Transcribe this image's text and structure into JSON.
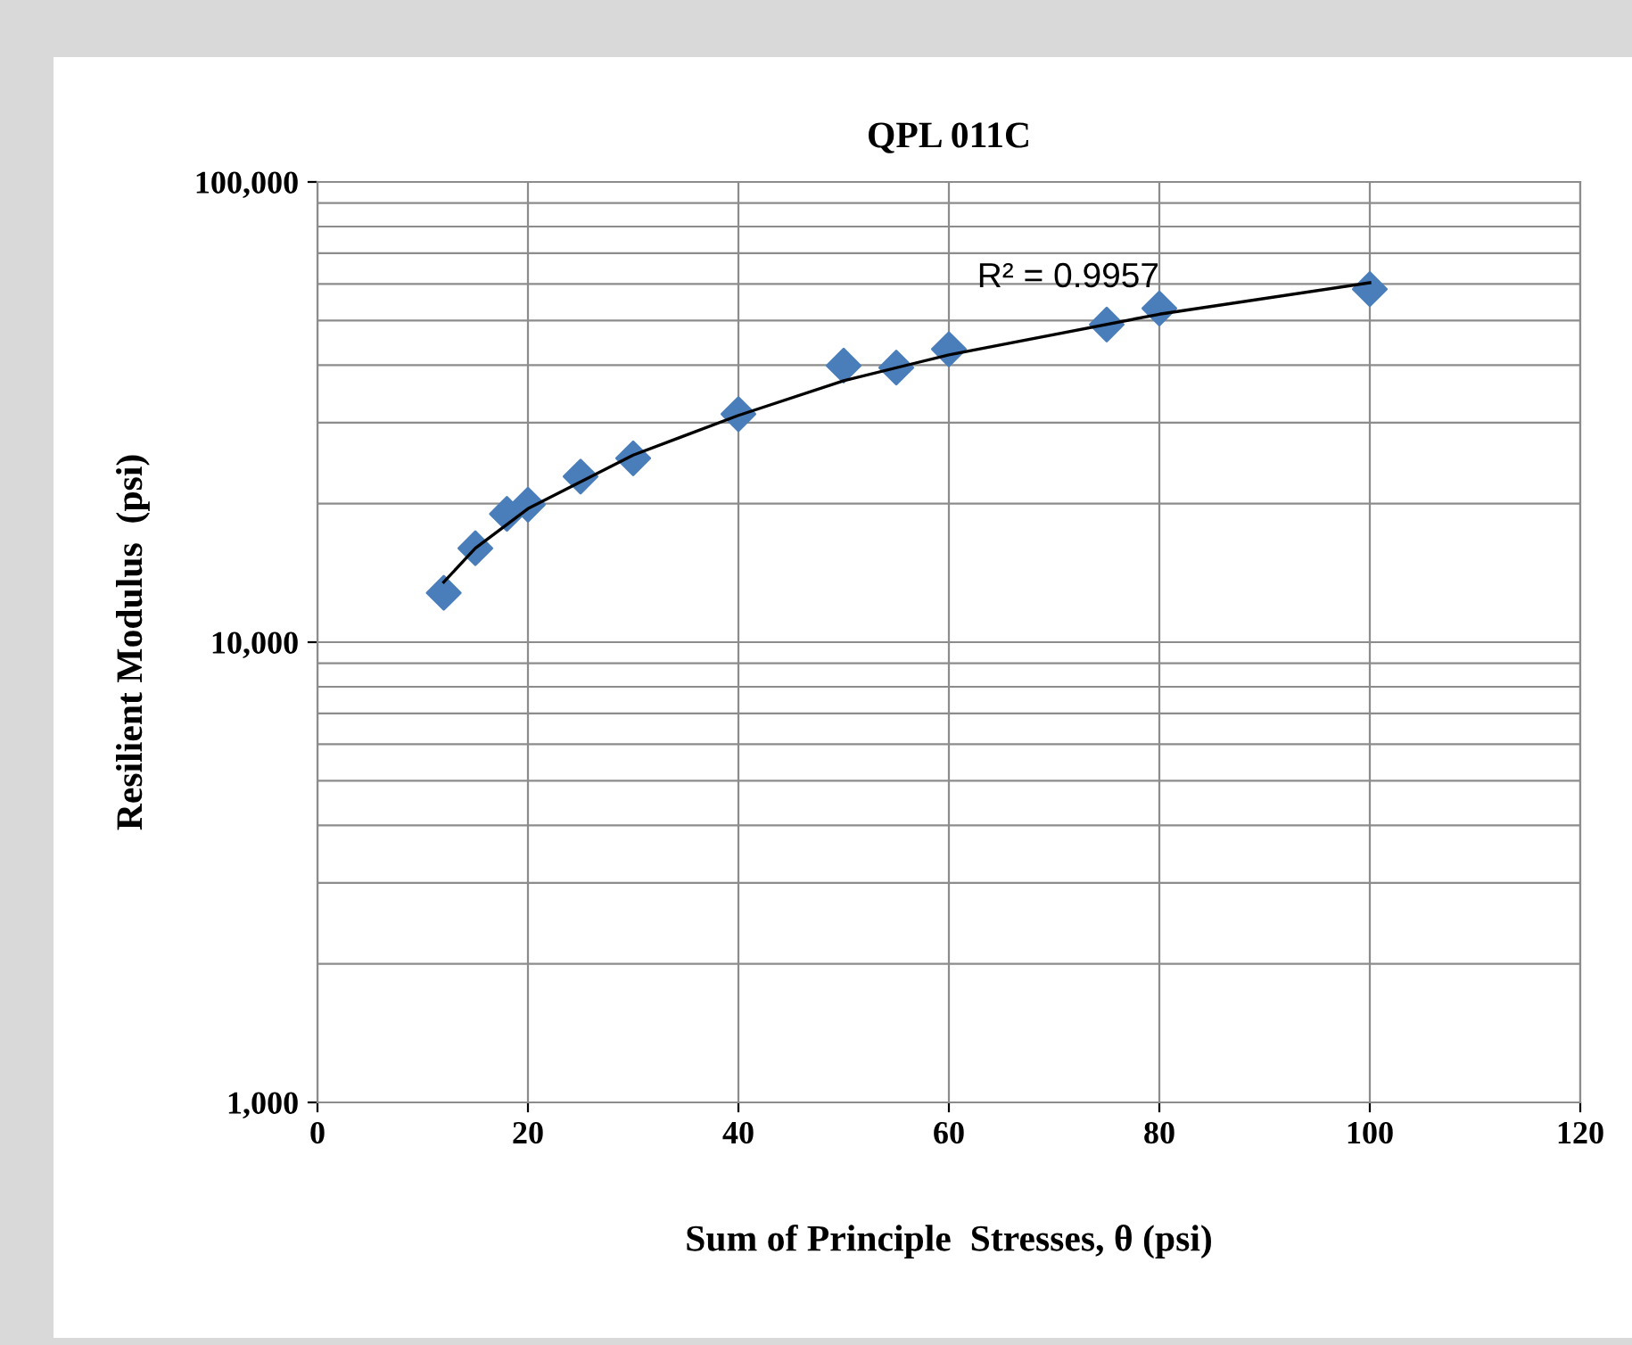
{
  "chart_data": {
    "type": "scatter",
    "title": "QPL 011C",
    "xlabel": "Sum of Principle  Stresses, θ (psi)",
    "ylabel": "Resilient Modulus  (psi)",
    "x": [
      12,
      15,
      18,
      20,
      25,
      30,
      40,
      50,
      55,
      60,
      75,
      80,
      100
    ],
    "series": [
      {
        "color": "#4a7ebb",
        "marker": "diamond",
        "values": [
          12800,
          16000,
          19000,
          19900,
          22900,
          25100,
          31300,
          39900,
          39500,
          43300,
          49000,
          53100,
          58500
        ]
      },
      {
        "type": "line",
        "color": "#000000",
        "marker": "none",
        "x": [
          12,
          15,
          20,
          30,
          40,
          50,
          60,
          80,
          100
        ],
        "values": [
          13500,
          16000,
          19500,
          25500,
          31100,
          37000,
          42100,
          51600,
          60400
        ]
      }
    ],
    "annotations": [
      {
        "text": "R² = 0.9957",
        "x": 80,
        "y": 57000
      }
    ],
    "log": "y",
    "xlim": [
      0,
      120
    ],
    "xticks": [
      0,
      20,
      40,
      60,
      80,
      100,
      120
    ],
    "ylim": [
      1000,
      100000
    ],
    "yticks": [
      {
        "value": 1000,
        "label": "1,000"
      },
      {
        "value": 10000,
        "label": "10,000"
      },
      {
        "value": 100000,
        "label": "100,000"
      }
    ],
    "grid": true,
    "legend": false
  }
}
